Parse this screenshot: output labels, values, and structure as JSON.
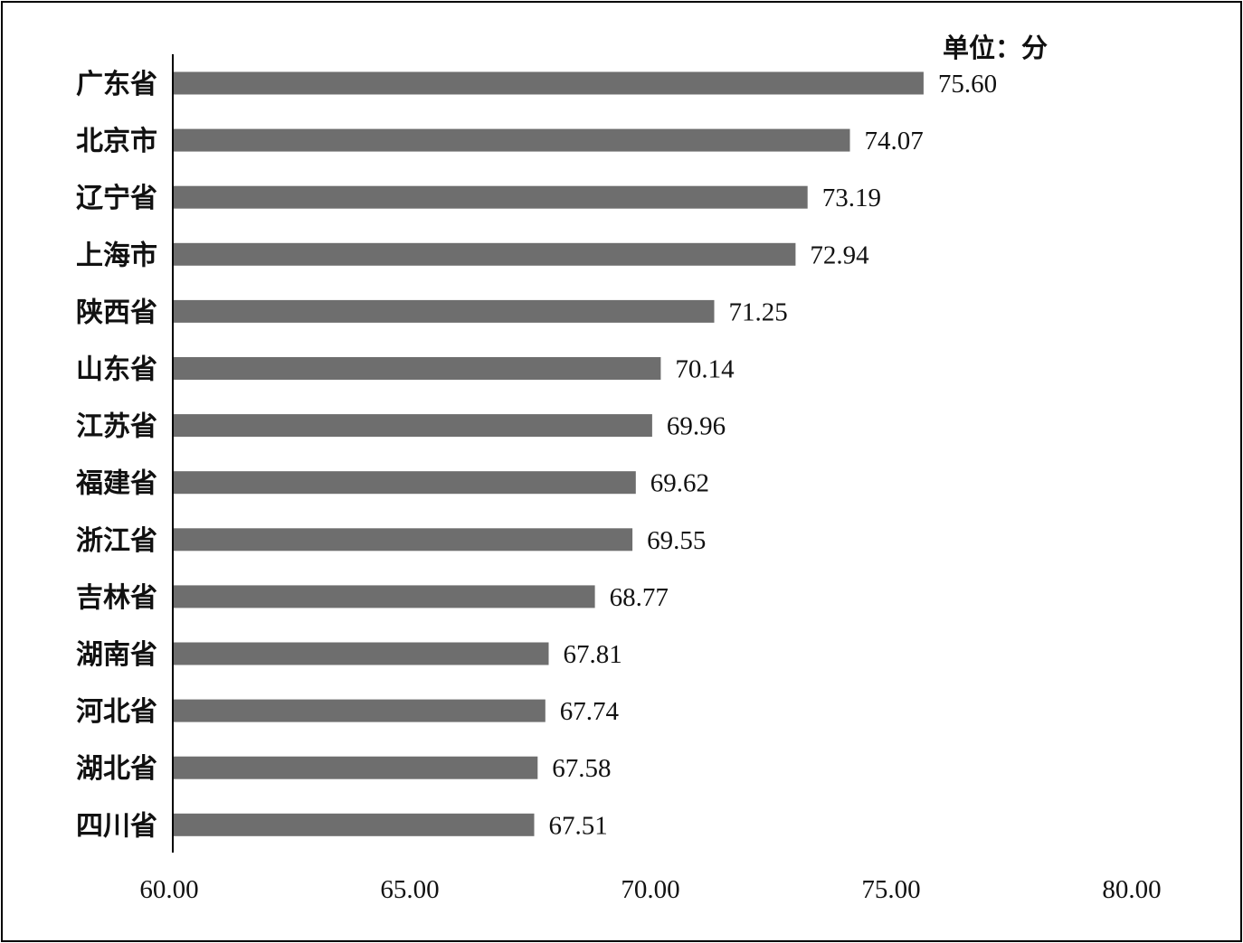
{
  "chart_data": {
    "type": "bar",
    "orientation": "horizontal",
    "unit_label": "单位：分",
    "categories": [
      "广东省",
      "北京市",
      "辽宁省",
      "上海市",
      "陕西省",
      "山东省",
      "江苏省",
      "福建省",
      "浙江省",
      "吉林省",
      "湖南省",
      "河北省",
      "湖北省",
      "四川省"
    ],
    "values": [
      75.6,
      74.07,
      73.19,
      72.94,
      71.25,
      70.14,
      69.96,
      69.62,
      69.55,
      68.77,
      67.81,
      67.74,
      67.58,
      67.51
    ],
    "value_labels": [
      "75.60",
      "74.07",
      "73.19",
      "72.94",
      "71.25",
      "70.14",
      "69.96",
      "69.62",
      "69.55",
      "68.77",
      "67.81",
      "67.74",
      "67.58",
      "67.51"
    ],
    "xlim": [
      60,
      80
    ],
    "x_ticks": [
      60,
      65,
      70,
      75,
      80
    ],
    "x_tick_labels": [
      "60.00",
      "65.00",
      "70.00",
      "75.00",
      "80.00"
    ],
    "bar_color": "#6e6e6e",
    "grid": false,
    "legend": "none"
  }
}
